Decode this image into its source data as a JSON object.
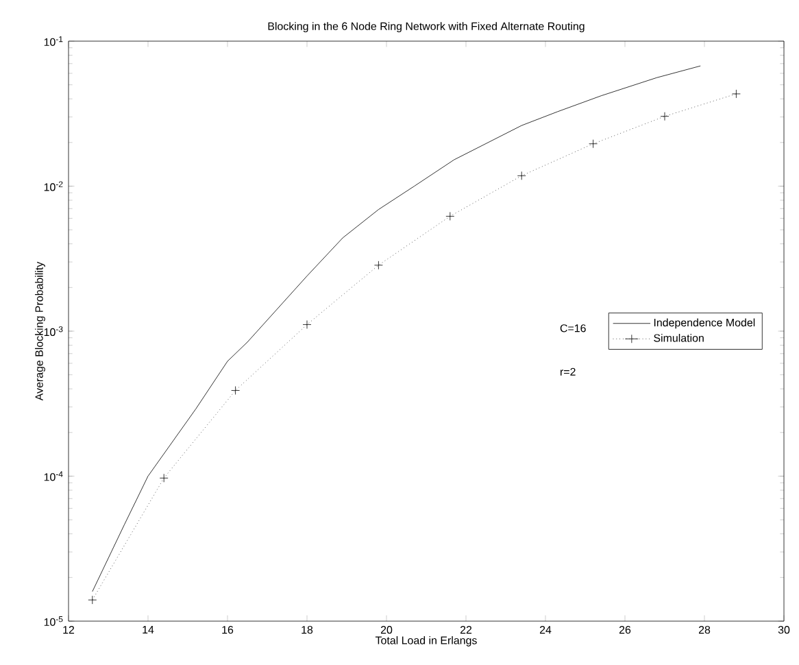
{
  "chart_data": {
    "type": "line",
    "title": "Blocking in the 6 Node Ring Network with Fixed Alternate Routing",
    "xlabel": "Total Load in Erlangs",
    "ylabel": "Average Blocking Probability",
    "log": "y",
    "xlim": [
      12,
      30
    ],
    "xticks": [
      12,
      14,
      16,
      18,
      20,
      22,
      24,
      26,
      28,
      30
    ],
    "ylim": [
      1e-05,
      0.1
    ],
    "yticks": [
      {
        "value": 1e-05,
        "label": "10$^{-5}$"
      },
      {
        "value": 0.0001,
        "label": "10$^{-4}$"
      },
      {
        "value": 0.001,
        "label": "10$^{-3}$"
      },
      {
        "value": 0.01,
        "label": "10$^{-2}$"
      },
      {
        "value": 0.1,
        "label": "10$^{-1}$"
      }
    ],
    "legend": "right",
    "grid": false,
    "annotations": [
      "C=16",
      "r=2"
    ],
    "series": [
      {
        "name": "Independence Model",
        "color": "#000000",
        "line_style": "solid",
        "marker": "none",
        "x": [
          12.6,
          13.4,
          14.0,
          15.2,
          16.0,
          16.5,
          18.0,
          18.9,
          19.8,
          20.7,
          21.7,
          23.4,
          24.3,
          25.4,
          26.8,
          27.9
        ],
        "values": [
          1.6e-05,
          4.6e-05,
          0.0001,
          0.00029,
          0.00062,
          0.00084,
          0.0024,
          0.0044,
          0.0069,
          0.01,
          0.0152,
          0.0262,
          0.0326,
          0.042,
          0.056,
          0.0675
        ]
      },
      {
        "name": "Simulation",
        "color": "#000000",
        "line_style": "dotted",
        "marker": "cross",
        "x": [
          12.6,
          14.4,
          16.2,
          18.0,
          19.8,
          21.6,
          23.4,
          25.2,
          27.0,
          28.8
        ],
        "values": [
          1.4e-05,
          9.7e-05,
          0.00039,
          0.00111,
          0.00285,
          0.0062,
          0.0118,
          0.0196,
          0.0303,
          0.0433
        ]
      }
    ]
  }
}
